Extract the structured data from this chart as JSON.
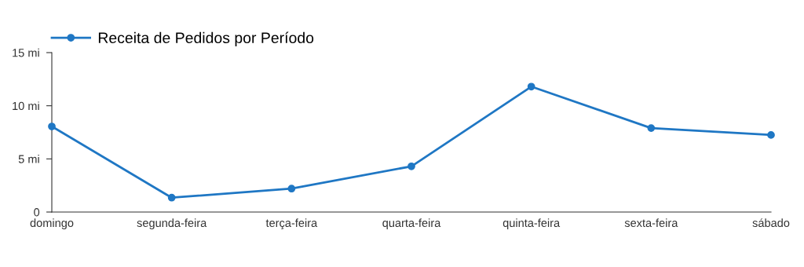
{
  "chart_data": {
    "type": "line",
    "categories": [
      "domingo",
      "segunda-feira",
      "terça-feira",
      "quarta-feira",
      "quinta-feira",
      "sexta-feira",
      "sábado"
    ],
    "series": [
      {
        "name": "Receita de Pedidos por Período",
        "color": "#1f77c4",
        "values": [
          8.05,
          1.35,
          2.2,
          4.3,
          11.8,
          7.9,
          7.25
        ]
      }
    ],
    "ylim": [
      0,
      15
    ],
    "yticks": [
      0,
      {
        "value": 5,
        "label": "5 mi"
      },
      {
        "value": 10,
        "label": "10 mi"
      },
      {
        "value": 15,
        "label": "15 mi"
      }
    ],
    "grid": false,
    "legend": "top left",
    "marker": "circle",
    "line_style": "solid"
  }
}
